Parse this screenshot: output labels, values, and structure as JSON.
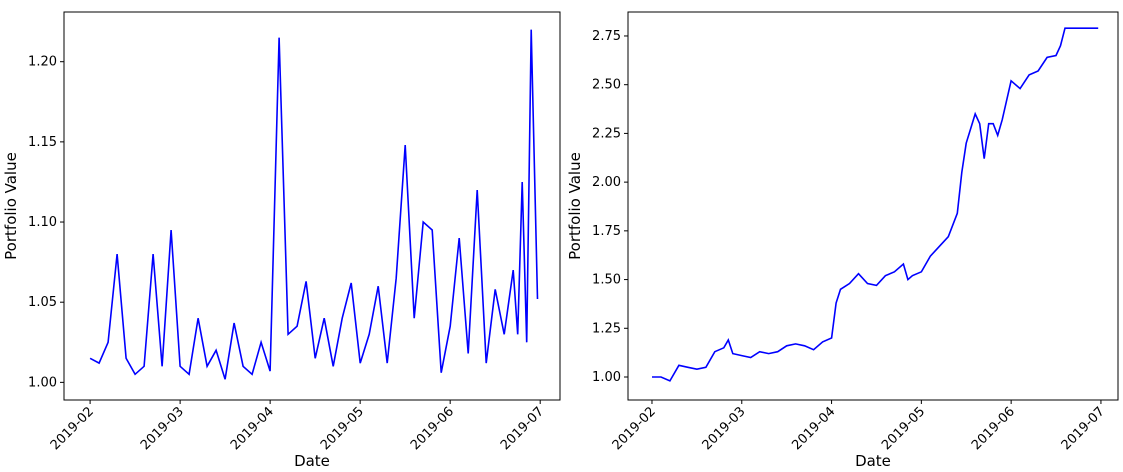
{
  "chart_data": [
    {
      "type": "line",
      "x_label": "Date",
      "y_label": "Portfolio Value",
      "x": [
        2.0,
        2.1,
        2.2,
        2.3,
        2.4,
        2.5,
        2.6,
        2.7,
        2.8,
        2.9,
        3.0,
        3.1,
        3.2,
        3.3,
        3.4,
        3.5,
        3.6,
        3.7,
        3.8,
        3.9,
        4.0,
        4.1,
        4.2,
        4.3,
        4.4,
        4.5,
        4.6,
        4.7,
        4.8,
        4.9,
        5.0,
        5.1,
        5.2,
        5.3,
        5.4,
        5.5,
        5.6,
        5.7,
        5.8,
        5.9,
        6.0,
        6.1,
        6.2,
        6.3,
        6.4,
        6.5,
        6.6,
        6.7,
        6.75,
        6.8,
        6.85,
        6.9,
        6.97
      ],
      "series": [
        {
          "color": "#0000ff",
          "values": [
            1.015,
            1.012,
            1.025,
            1.08,
            1.015,
            1.005,
            1.01,
            1.08,
            1.01,
            1.095,
            1.01,
            1.005,
            1.04,
            1.01,
            1.02,
            1.002,
            1.037,
            1.01,
            1.005,
            1.025,
            1.007,
            1.215,
            1.03,
            1.035,
            1.063,
            1.015,
            1.04,
            1.01,
            1.04,
            1.062,
            1.012,
            1.03,
            1.06,
            1.012,
            1.065,
            1.148,
            1.04,
            1.1,
            1.095,
            1.006,
            1.035,
            1.09,
            1.018,
            1.12,
            1.012,
            1.058,
            1.03,
            1.07,
            1.03,
            1.125,
            1.025,
            1.22,
            1.052
          ]
        }
      ],
      "xlim": [
        1.71,
        7.22
      ],
      "xticks": [
        {
          "value": 2,
          "label": "2019-02"
        },
        {
          "value": 3,
          "label": "2019-03"
        },
        {
          "value": 4,
          "label": "2019-04"
        },
        {
          "value": 5,
          "label": "2019-05"
        },
        {
          "value": 6,
          "label": "2019-06"
        },
        {
          "value": 7,
          "label": "2019-07"
        }
      ],
      "ylim": [
        0.989,
        1.231
      ],
      "yticks": [
        {
          "value": 1,
          "label": "1.00"
        },
        1.05,
        {
          "value": 1.1,
          "label": "1.10"
        },
        1.15,
        {
          "value": 1.2,
          "label": "1.20"
        }
      ]
    },
    {
      "type": "line",
      "x_label": "Date",
      "y_label": "Portfolio Value",
      "x": [
        2.0,
        2.1,
        2.2,
        2.3,
        2.4,
        2.5,
        2.6,
        2.7,
        2.8,
        2.85,
        2.9,
        3.0,
        3.1,
        3.2,
        3.3,
        3.4,
        3.5,
        3.6,
        3.7,
        3.8,
        3.9,
        4.0,
        4.05,
        4.1,
        4.2,
        4.3,
        4.4,
        4.5,
        4.6,
        4.7,
        4.8,
        4.85,
        4.9,
        5.0,
        5.1,
        5.2,
        5.3,
        5.4,
        5.45,
        5.5,
        5.6,
        5.65,
        5.7,
        5.75,
        5.8,
        5.85,
        5.9,
        6.0,
        6.1,
        6.2,
        6.3,
        6.4,
        6.5,
        6.55,
        6.6,
        6.97
      ],
      "series": [
        {
          "color": "#0000ff",
          "values": [
            1.0,
            1.0,
            0.98,
            1.06,
            1.05,
            1.04,
            1.05,
            1.13,
            1.15,
            1.19,
            1.12,
            1.11,
            1.1,
            1.13,
            1.12,
            1.13,
            1.16,
            1.17,
            1.16,
            1.14,
            1.18,
            1.2,
            1.38,
            1.45,
            1.48,
            1.53,
            1.48,
            1.47,
            1.52,
            1.54,
            1.58,
            1.5,
            1.52,
            1.54,
            1.62,
            1.67,
            1.72,
            1.84,
            2.05,
            2.2,
            2.35,
            2.3,
            2.12,
            2.3,
            2.3,
            2.24,
            2.32,
            2.52,
            2.48,
            2.55,
            2.57,
            2.64,
            2.65,
            2.7,
            2.79,
            2.79
          ]
        }
      ],
      "xlim": [
        1.733,
        7.19
      ],
      "xticks": [
        {
          "value": 2,
          "label": "2019-02"
        },
        {
          "value": 3,
          "label": "2019-03"
        },
        {
          "value": 4,
          "label": "2019-04"
        },
        {
          "value": 5,
          "label": "2019-05"
        },
        {
          "value": 6,
          "label": "2019-06"
        },
        {
          "value": 7,
          "label": "2019-07"
        }
      ],
      "ylim": [
        0.882,
        2.873
      ],
      "yticks": [
        {
          "value": 1,
          "label": "1.00"
        },
        1.25,
        {
          "value": 1.5,
          "label": "1.50"
        },
        1.75,
        {
          "value": 2,
          "label": "2.00"
        },
        2.25,
        {
          "value": 2.5,
          "label": "2.50"
        },
        2.75
      ]
    }
  ]
}
